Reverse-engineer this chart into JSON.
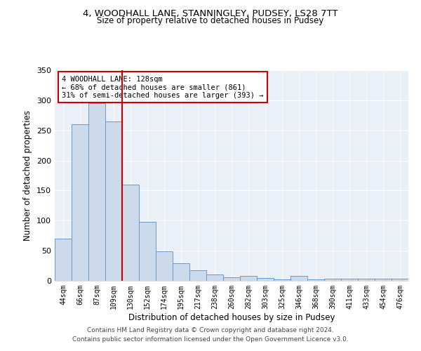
{
  "title_line1": "4, WOODHALL LANE, STANNINGLEY, PUDSEY, LS28 7TT",
  "title_line2": "Size of property relative to detached houses in Pudsey",
  "xlabel": "Distribution of detached houses by size in Pudsey",
  "ylabel": "Number of detached properties",
  "bar_color": "#ccdaeb",
  "bar_edge_color": "#6699cc",
  "bar_edge_width": 0.7,
  "marker_color": "#cc0000",
  "annotation_line1": "4 WOODHALL LANE: 128sqm",
  "annotation_line2": "← 68% of detached houses are smaller (861)",
  "annotation_line3": "31% of semi-detached houses are larger (393) →",
  "categories": [
    "44sqm",
    "66sqm",
    "87sqm",
    "109sqm",
    "130sqm",
    "152sqm",
    "174sqm",
    "195sqm",
    "217sqm",
    "238sqm",
    "260sqm",
    "282sqm",
    "303sqm",
    "325sqm",
    "346sqm",
    "368sqm",
    "390sqm",
    "411sqm",
    "433sqm",
    "454sqm",
    "476sqm"
  ],
  "values": [
    70,
    260,
    295,
    265,
    160,
    98,
    49,
    29,
    18,
    10,
    6,
    8,
    5,
    2,
    8,
    2,
    3,
    3,
    3,
    3,
    4
  ],
  "ylim": [
    0,
    350
  ],
  "yticks": [
    0,
    50,
    100,
    150,
    200,
    250,
    300,
    350
  ],
  "background_color": "#eaf0f8",
  "marker_bar_index": 3,
  "footer_line1": "Contains HM Land Registry data © Crown copyright and database right 2024.",
  "footer_line2": "Contains public sector information licensed under the Open Government Licence v3.0."
}
